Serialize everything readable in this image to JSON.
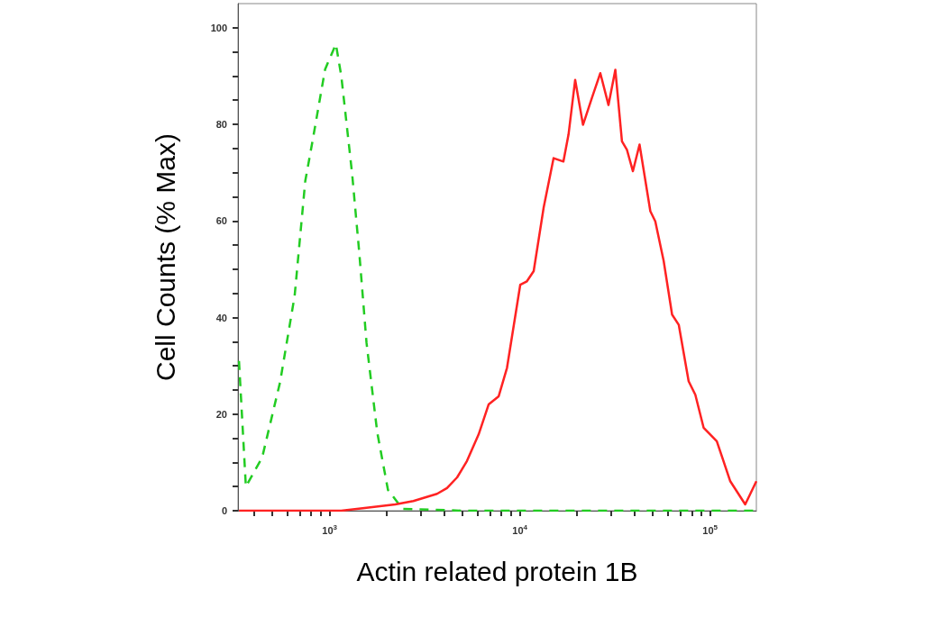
{
  "chart_data": {
    "type": "line",
    "xlabel": "Actin related protein 1B",
    "ylabel": "Cell Counts (% Max)",
    "log": "x",
    "grid": false,
    "marker": "none",
    "xlim": [
      330,
      175000
    ],
    "ylim": [
      0,
      105
    ],
    "xticks": [
      {
        "value": 400,
        "label": null
      },
      {
        "value": 500,
        "label": null
      },
      {
        "value": 600,
        "label": null
      },
      {
        "value": 700,
        "label": null
      },
      {
        "value": 800,
        "label": null
      },
      {
        "value": 900,
        "label": null
      },
      {
        "value": 1000,
        "label": "10$^{3}$"
      },
      {
        "value": 2000,
        "label": null
      },
      {
        "value": 3000,
        "label": null
      },
      {
        "value": 4000,
        "label": null
      },
      {
        "value": 5000,
        "label": null
      },
      {
        "value": 6000,
        "label": null
      },
      {
        "value": 7000,
        "label": null
      },
      {
        "value": 8000,
        "label": null
      },
      {
        "value": 9000,
        "label": null
      },
      {
        "value": 10000,
        "label": "10$^{4}$"
      },
      {
        "value": 20000,
        "label": null
      },
      {
        "value": 30000,
        "label": null
      },
      {
        "value": 40000,
        "label": null
      },
      {
        "value": 50000,
        "label": null
      },
      {
        "value": 60000,
        "label": null
      },
      {
        "value": 70000,
        "label": null
      },
      {
        "value": 80000,
        "label": null
      },
      {
        "value": 90000,
        "label": null
      },
      {
        "value": 100000,
        "label": "10$^{5}$"
      }
    ],
    "yticks": [
      0,
      {
        "value": 5,
        "label": null
      },
      {
        "value": 10,
        "label": null
      },
      {
        "value": 15,
        "label": null
      },
      20,
      {
        "value": 25,
        "label": null
      },
      {
        "value": 30,
        "label": null
      },
      {
        "value": 35,
        "label": null
      },
      40,
      {
        "value": 45,
        "label": null
      },
      {
        "value": 50,
        "label": null
      },
      {
        "value": 55,
        "label": null
      },
      60,
      {
        "value": 65,
        "label": null
      },
      {
        "value": 70,
        "label": null
      },
      {
        "value": 75,
        "label": null
      },
      80,
      {
        "value": 85,
        "label": null
      },
      {
        "value": 90,
        "label": null
      },
      {
        "value": 95,
        "label": null
      },
      100
    ],
    "series": [
      {
        "color": "#22cc22",
        "line_style": "dashed",
        "x": [
          334,
          363,
          442,
          549,
          655,
          745,
          813,
          947,
          1079,
          1152,
          1313,
          1432,
          1563,
          1780,
          2027,
          2415,
          5000,
          20000,
          80000,
          175000
        ],
        "values": [
          31,
          5,
          11,
          26.6,
          44.5,
          68.3,
          76.5,
          91.4,
          96.6,
          90,
          69.8,
          53.4,
          34.8,
          16.2,
          4.3,
          0.4,
          0,
          0,
          0,
          0
        ]
      },
      {
        "color": "#ff2222",
        "line_style": "solid",
        "x": [
          334,
          1150,
          1563,
          2213,
          2755,
          3670,
          4140,
          4680,
          5270,
          6070,
          6850,
          7740,
          8560,
          10050,
          10890,
          11820,
          13340,
          15040,
          16940,
          18020,
          19530,
          21470,
          23920,
          26480,
          29230,
          31750,
          34400,
          36560,
          39280,
          42560,
          48500,
          51500,
          57000,
          63100,
          68400,
          77100,
          83600,
          92400,
          108400,
          127600,
          152900,
          175000
        ],
        "values": [
          0,
          0,
          0.6,
          1.3,
          2,
          3.5,
          4.7,
          6.9,
          10.3,
          15.8,
          22,
          23.7,
          29.6,
          46.8,
          47.5,
          49.6,
          62.8,
          73,
          72.3,
          77.9,
          89.2,
          79.9,
          85.5,
          90.6,
          84,
          91.3,
          76.5,
          74.7,
          70.3,
          75.8,
          62,
          59.9,
          51.7,
          40.6,
          38.5,
          26.8,
          24,
          17.2,
          14.4,
          6.1,
          1.3,
          6.1
        ]
      }
    ]
  }
}
